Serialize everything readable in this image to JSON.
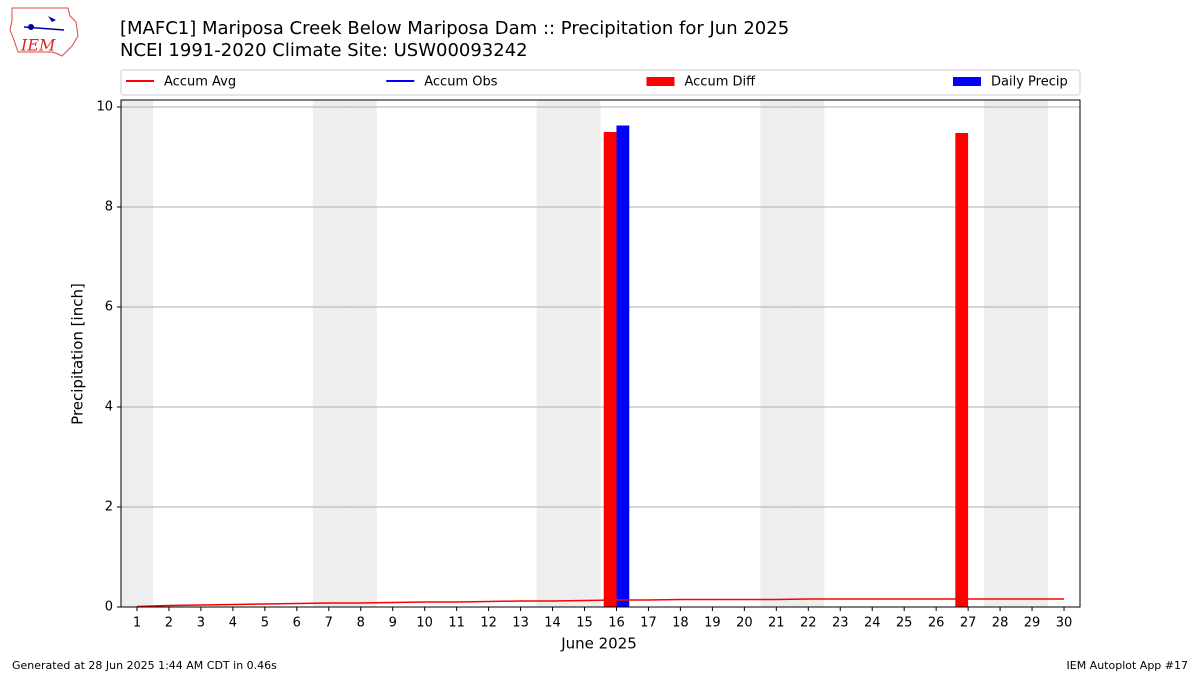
{
  "chart_data": {
    "type": "bar",
    "logo_text": "IEM",
    "title": "[MAFC1] Mariposa Creek Below Mariposa Dam :: Precipitation for Jun 2025",
    "subtitle": "NCEI 1991-2020 Climate Site: USW00093242",
    "xlabel": "June 2025",
    "ylabel": "Precipitation [inch]",
    "x": [
      1,
      2,
      3,
      4,
      5,
      6,
      7,
      8,
      9,
      10,
      11,
      12,
      13,
      14,
      15,
      16,
      17,
      18,
      19,
      20,
      21,
      22,
      23,
      24,
      25,
      26,
      27,
      28,
      29,
      30
    ],
    "xlim": [
      0.5,
      30.5
    ],
    "xticks": [
      1,
      2,
      3,
      4,
      5,
      6,
      7,
      8,
      9,
      10,
      11,
      12,
      13,
      14,
      15,
      16,
      17,
      18,
      19,
      20,
      21,
      22,
      23,
      24,
      25,
      26,
      27,
      28,
      29,
      30
    ],
    "ylim": [
      0,
      10.14
    ],
    "yticks": [
      0,
      2,
      4,
      6,
      8,
      10
    ],
    "grid": true,
    "shaded_days": [
      1,
      7,
      8,
      14,
      15,
      21,
      22,
      28,
      29
    ],
    "series": [
      {
        "name": "Accum Avg",
        "type": "line",
        "color": "#ff0000",
        "values": [
          0.01,
          0.03,
          0.04,
          0.05,
          0.06,
          0.07,
          0.08,
          0.08,
          0.09,
          0.1,
          0.1,
          0.11,
          0.12,
          0.12,
          0.13,
          0.14,
          0.14,
          0.15,
          0.15,
          0.15,
          0.15,
          0.16,
          0.16,
          0.16,
          0.16,
          0.16,
          0.16,
          0.16,
          0.16,
          0.16
        ]
      },
      {
        "name": "Accum Obs",
        "type": "line",
        "color": "#0000ff",
        "values": [
          null,
          null,
          null,
          null,
          null,
          null,
          null,
          null,
          null,
          null,
          null,
          null,
          null,
          null,
          null,
          null,
          null,
          null,
          null,
          null,
          null,
          null,
          null,
          null,
          null,
          null,
          null,
          null,
          null,
          null
        ]
      },
      {
        "name": "Accum Diff",
        "type": "bar",
        "color": "#ff0000",
        "values": [
          null,
          null,
          null,
          null,
          null,
          null,
          null,
          null,
          null,
          null,
          null,
          null,
          null,
          null,
          null,
          9.5,
          null,
          null,
          null,
          null,
          null,
          null,
          null,
          null,
          null,
          null,
          9.48,
          null,
          null,
          null
        ]
      },
      {
        "name": "Daily Precip",
        "type": "bar",
        "color": "#0000ff",
        "values": [
          null,
          null,
          null,
          null,
          null,
          null,
          null,
          null,
          null,
          null,
          null,
          null,
          null,
          null,
          null,
          9.63,
          null,
          null,
          null,
          null,
          null,
          null,
          null,
          null,
          null,
          null,
          null,
          null,
          null,
          null
        ]
      }
    ],
    "footer_left": "Generated at 28 Jun 2025 1:44 AM CDT in 0.46s",
    "footer_right": "IEM Autoplot App #17"
  }
}
